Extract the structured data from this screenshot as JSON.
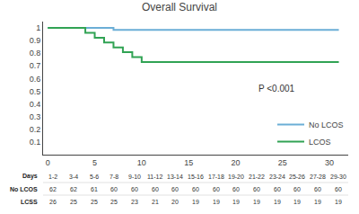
{
  "chart_data": {
    "type": "line",
    "title": "Overall Survival",
    "series": [
      {
        "name": "No LCOS",
        "color": "#6baed6",
        "line_style": "step",
        "x": [
          0,
          4,
          7,
          8,
          31
        ],
        "values": [
          1.0,
          1.0,
          0.984,
          0.984,
          0.984
        ]
      },
      {
        "name": "LCOS",
        "color": "#31a354",
        "line_style": "step",
        "x": [
          0,
          4,
          5,
          6,
          7,
          8,
          9,
          10,
          31
        ],
        "values": [
          1.0,
          0.962,
          0.923,
          0.885,
          0.846,
          0.808,
          0.769,
          0.731,
          0.731
        ]
      }
    ],
    "xlim": [
      -0.5,
      32
    ],
    "ylim": [
      0.0,
      1.05
    ],
    "xticks": [
      0,
      5,
      10,
      15,
      20,
      25,
      30
    ],
    "yticks": [
      0.1,
      0.2,
      0.3,
      0.4,
      0.5,
      0.6,
      0.7,
      0.8,
      0.9,
      1
    ],
    "annotations": [
      {
        "text": "P <0.001"
      }
    ],
    "legend": "lower right",
    "grid": false,
    "table": {
      "row_labels": [
        "Days",
        "No LCOS",
        "LCSS"
      ],
      "cells": [
        [
          "1-2",
          "3-4",
          "5-6",
          "7-8",
          "9-10",
          "11-12",
          "13-14",
          "15-16",
          "17-18",
          "19-20",
          "21-22",
          "23-24",
          "25-26",
          "27-28",
          "29-30"
        ],
        [
          "62",
          "62",
          "61",
          "60",
          "60",
          "60",
          "60",
          "60",
          "60",
          "60",
          "60",
          "60",
          "60",
          "60",
          "60"
        ],
        [
          "26",
          "25",
          "25",
          "25",
          "23",
          "21",
          "20",
          "19",
          "19",
          "19",
          "19",
          "19",
          "19",
          "19",
          "19"
        ]
      ]
    }
  }
}
